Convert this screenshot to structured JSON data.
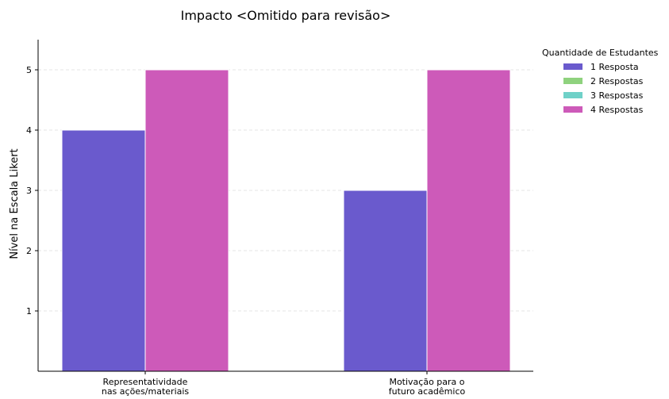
{
  "chart_data": {
    "type": "bar",
    "title": "Impacto <Omitido para revisão>",
    "xlabel": "",
    "ylabel": "Nível na Escala Likert",
    "ylim": [
      0,
      5.5
    ],
    "yticks": [
      1,
      2,
      3,
      4,
      5
    ],
    "grid": "horizontal dashed",
    "categories": [
      [
        "Representatividade",
        "nas ações/materiais"
      ],
      [
        "Motivação para o",
        "futuro acadêmico"
      ]
    ],
    "series": [
      {
        "name": "1 Resposta",
        "color": "#6a5acd",
        "values": [
          4,
          3
        ]
      },
      {
        "name": "2 Respostas",
        "color": "#8fd27e",
        "values": [
          0,
          0
        ]
      },
      {
        "name": "3 Respostas",
        "color": "#6fd1c8",
        "values": [
          0,
          0
        ]
      },
      {
        "name": "4 Respostas",
        "color": "#cd5ab9",
        "values": [
          5,
          5
        ]
      }
    ],
    "legend": {
      "title": "Quantidade de Estudantes",
      "placement": "outside right"
    }
  }
}
